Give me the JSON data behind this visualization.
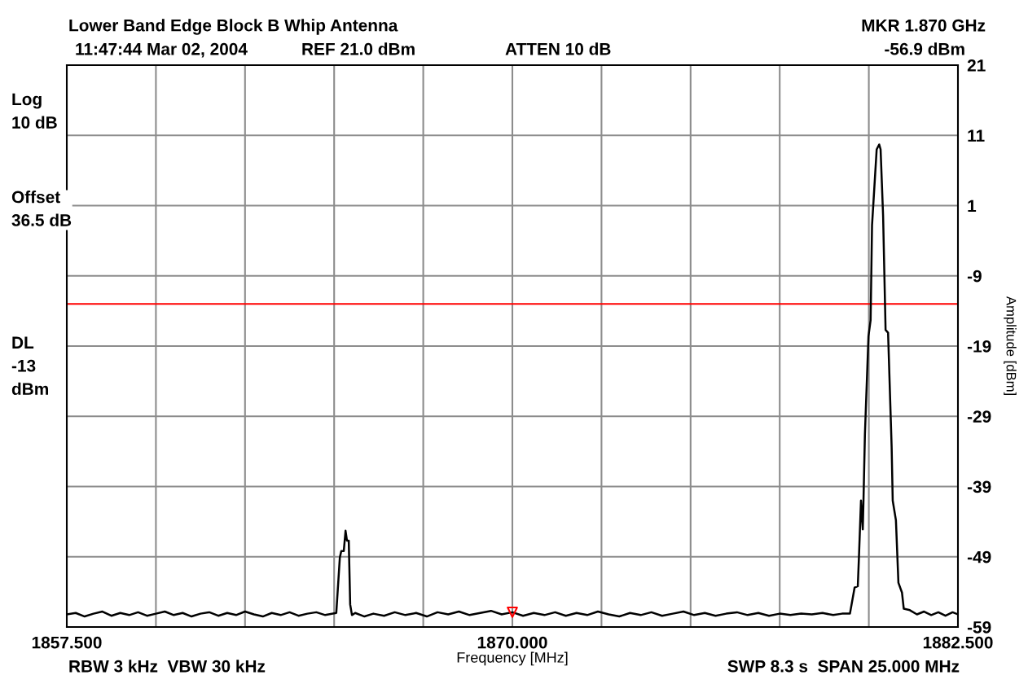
{
  "chart_data": {
    "type": "line",
    "title": "Lower Band Edge Block B Whip Antenna",
    "xlabel": "Frequency [MHz]",
    "ylabel": "Amplitude [dBm]",
    "xlim": [
      1857.5,
      1882.5
    ],
    "xticks": [
      {
        "value": 1857.5,
        "label": "1857.500"
      },
      {
        "value": 1860,
        "label": null
      },
      {
        "value": 1862.5,
        "label": null
      },
      {
        "value": 1865,
        "label": null
      },
      {
        "value": 1867.5,
        "label": null
      },
      {
        "value": 1870,
        "label": "1870.000"
      },
      {
        "value": 1872.5,
        "label": null
      },
      {
        "value": 1875,
        "label": null
      },
      {
        "value": 1877.5,
        "label": null
      },
      {
        "value": 1880,
        "label": null
      },
      {
        "value": 1882.5,
        "label": "1882.500"
      }
    ],
    "ylim": [
      -59,
      21
    ],
    "yticks": [
      21,
      11,
      1,
      -9,
      -19,
      -29,
      -39,
      -49,
      -59
    ],
    "grid": true,
    "line_style": "solid",
    "marker": "none",
    "ref_lines": [
      {
        "axis": "y",
        "value": -13,
        "color": "#ff0000"
      }
    ],
    "annotations": [
      "11:47:44 Mar 02, 2004",
      "REF 21.0 dBm",
      "ATTEN 10 dB",
      "MKR 1.870 GHz",
      "-56.9 dBm",
      "Log\n10 dB",
      "Offset\n36.5 dB",
      "DL\n-13\ndBm",
      "RBW 3 kHz  VBW 30 kHz",
      "SWP 8.3 s  SPAN 25.000 MHz"
    ],
    "series": [
      {
        "color": "#000000",
        "x": [
          1857.5,
          1857.75,
          1858.0,
          1858.25,
          1858.5,
          1858.75,
          1859.0,
          1859.25,
          1859.5,
          1859.75,
          1860.0,
          1860.25,
          1860.5,
          1860.75,
          1861.0,
          1861.25,
          1861.5,
          1861.75,
          1862.0,
          1862.25,
          1862.5,
          1862.75,
          1863.0,
          1863.25,
          1863.5,
          1863.75,
          1864.0,
          1864.25,
          1864.5,
          1864.75,
          1865.06,
          1865.16,
          1865.2,
          1865.27,
          1865.32,
          1865.36,
          1865.41,
          1865.45,
          1865.5,
          1865.59,
          1865.85,
          1866.1,
          1866.4,
          1866.7,
          1867.0,
          1867.3,
          1867.6,
          1867.9,
          1868.2,
          1868.5,
          1868.8,
          1869.1,
          1869.4,
          1869.7,
          1870.0,
          1870.3,
          1870.6,
          1870.9,
          1871.2,
          1871.5,
          1871.8,
          1872.1,
          1872.4,
          1872.7,
          1873.0,
          1873.3,
          1873.6,
          1873.9,
          1874.2,
          1874.5,
          1874.8,
          1875.1,
          1875.4,
          1875.7,
          1876.0,
          1876.3,
          1876.6,
          1876.9,
          1877.2,
          1877.5,
          1877.8,
          1878.1,
          1878.4,
          1878.7,
          1879.0,
          1879.25,
          1879.47,
          1879.6,
          1879.69,
          1879.72,
          1879.78,
          1879.83,
          1879.85,
          1879.89,
          1879.99,
          1880.05,
          1880.09,
          1880.22,
          1880.29,
          1880.33,
          1880.4,
          1880.47,
          1880.54,
          1880.64,
          1880.67,
          1880.76,
          1880.83,
          1880.93,
          1880.98,
          1881.15,
          1881.35,
          1881.55,
          1881.75,
          1881.95,
          1882.15,
          1882.35,
          1882.5
        ],
        "values": [
          -57.2,
          -57.0,
          -57.5,
          -57.1,
          -56.8,
          -57.4,
          -57.0,
          -57.3,
          -56.9,
          -57.4,
          -57.1,
          -56.8,
          -57.3,
          -57.0,
          -57.5,
          -57.1,
          -56.9,
          -57.4,
          -57.0,
          -57.3,
          -56.8,
          -57.2,
          -57.5,
          -57.0,
          -57.3,
          -56.9,
          -57.4,
          -57.1,
          -56.9,
          -57.3,
          -57.0,
          -49.1,
          -48.2,
          -48.2,
          -45.3,
          -46.7,
          -46.7,
          -55.8,
          -57.3,
          -57.0,
          -57.5,
          -57.1,
          -57.4,
          -56.9,
          -57.3,
          -57.0,
          -57.5,
          -56.9,
          -57.2,
          -56.8,
          -57.3,
          -57.0,
          -56.7,
          -57.2,
          -56.9,
          -57.4,
          -57.0,
          -57.3,
          -56.9,
          -57.4,
          -57.0,
          -57.3,
          -56.8,
          -57.2,
          -57.5,
          -57.0,
          -57.3,
          -56.9,
          -57.4,
          -57.1,
          -56.8,
          -57.3,
          -57.0,
          -57.4,
          -57.1,
          -56.9,
          -57.3,
          -57.0,
          -57.4,
          -57.1,
          -57.3,
          -57.1,
          -57.2,
          -57.0,
          -57.3,
          -57.1,
          -57.1,
          -53.4,
          -53.2,
          -49.4,
          -41.0,
          -45.1,
          -41.0,
          -31.6,
          -17.6,
          -15.3,
          -1.8,
          9.0,
          9.7,
          9.0,
          -0.4,
          -16.7,
          -17.1,
          -33.4,
          -41.0,
          -43.8,
          -52.7,
          -54.1,
          -56.4,
          -56.6,
          -57.2,
          -56.8,
          -57.3,
          -56.9,
          -57.4,
          -56.9,
          -57.2
        ]
      },
      {
        "type": "scatter",
        "color": "#ff0000",
        "marker": "triangle_down",
        "x": [
          1870.0
        ],
        "values": [
          -56.9
        ]
      }
    ]
  }
}
